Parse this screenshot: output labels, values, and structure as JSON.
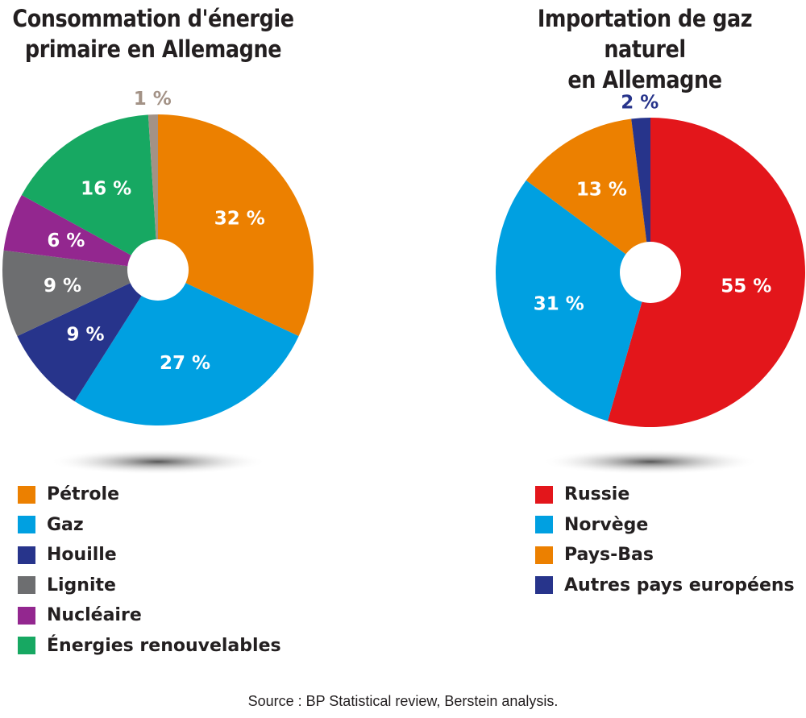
{
  "chart_data": [
    {
      "type": "pie",
      "title": "Consommation d'énergie primaire en Allemagne",
      "slices": [
        {
          "name": "Pétrole",
          "value": 32,
          "label": "32 %",
          "color": "#ec8000"
        },
        {
          "name": "Gaz",
          "value": 27,
          "label": "27 %",
          "color": "#00a0e1"
        },
        {
          "name": "Houille",
          "value": 9,
          "label": "9 %",
          "color": "#27348b"
        },
        {
          "name": "Lignite",
          "value": 9,
          "label": "9 %",
          "color": "#6d6e70"
        },
        {
          "name": "Nucléaire",
          "value": 6,
          "label": "6 %",
          "color": "#93278f"
        },
        {
          "name": "Énergies renouvelables",
          "value": 16,
          "label": "16 %",
          "color": "#17a862"
        },
        {
          "name": "",
          "value": 1,
          "label": "1 %",
          "color": "#a39286",
          "outside": true
        }
      ],
      "legend": [
        "Pétrole",
        "Gaz",
        "Houille",
        "Lignite",
        "Nucléaire",
        "Énergies renouvelables"
      ],
      "legend_placement": "bottom"
    },
    {
      "type": "pie",
      "title": "Importation de gaz naturel en Allemagne",
      "slices": [
        {
          "name": "Russie",
          "value": 55,
          "label": "55 %",
          "color": "#e3161b"
        },
        {
          "name": "Norvège",
          "value": 31,
          "label": "31 %",
          "color": "#00a0e1"
        },
        {
          "name": "Pays-Bas",
          "value": 13,
          "label": "13 %",
          "color": "#ec8000"
        },
        {
          "name": "Autres pays européens",
          "value": 2,
          "label": "2 %",
          "color": "#27348b",
          "outside": true
        }
      ],
      "legend": [
        "Russie",
        "Norvège",
        "Pays-Bas",
        "Autres pays européens"
      ],
      "legend_placement": "bottom"
    }
  ],
  "titles": {
    "left": [
      "Consommation d'énergie",
      "primaire en Allemagne"
    ],
    "right": [
      "Importation de gaz naturel",
      "en Allemagne"
    ]
  },
  "source": "Source : BP Statistical review, Berstein analysis."
}
